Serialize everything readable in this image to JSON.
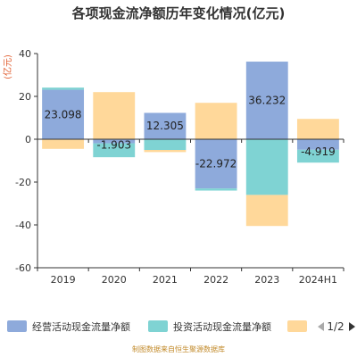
{
  "chart_data": {
    "type": "bar",
    "title": "各项现金流净额历年变化情况(亿元)",
    "unit_label": "(亿元)",
    "categories": [
      "2019",
      "2020",
      "2021",
      "2022",
      "2023",
      "2024H1"
    ],
    "ylim": [
      -60,
      40
    ],
    "yticks": [
      40,
      20,
      0,
      -20,
      -40,
      -60
    ],
    "grid": false,
    "stacked": true,
    "series": [
      {
        "name": "经营活动现金流量净额",
        "color": "#8eaadb",
        "values": [
          23.098,
          -1.903,
          12.305,
          -22.972,
          36.232,
          -4.919
        ]
      },
      {
        "name": "投资活动现金流量净额",
        "color": "#7fd3d3",
        "values": [
          1.0,
          -6.5,
          -5.0,
          -1.0,
          -26.0,
          -6.0
        ]
      },
      {
        "name": "",
        "color": "#ffd89a",
        "values": [
          -4.5,
          22.0,
          -1.0,
          17.0,
          -14.5,
          9.5
        ]
      }
    ],
    "data_labels": [
      "23.098",
      "-1.903",
      "12.305",
      "-22.972",
      "36.232",
      "-4.919"
    ],
    "legend_placement": "bottom"
  },
  "legend": {
    "page": "1/2"
  },
  "source": "制图数据来自恒生聚源数据库",
  "colors": {
    "axis": "#333333",
    "prev_arrow": "#aaaaaa",
    "next_arrow": "#333333"
  }
}
